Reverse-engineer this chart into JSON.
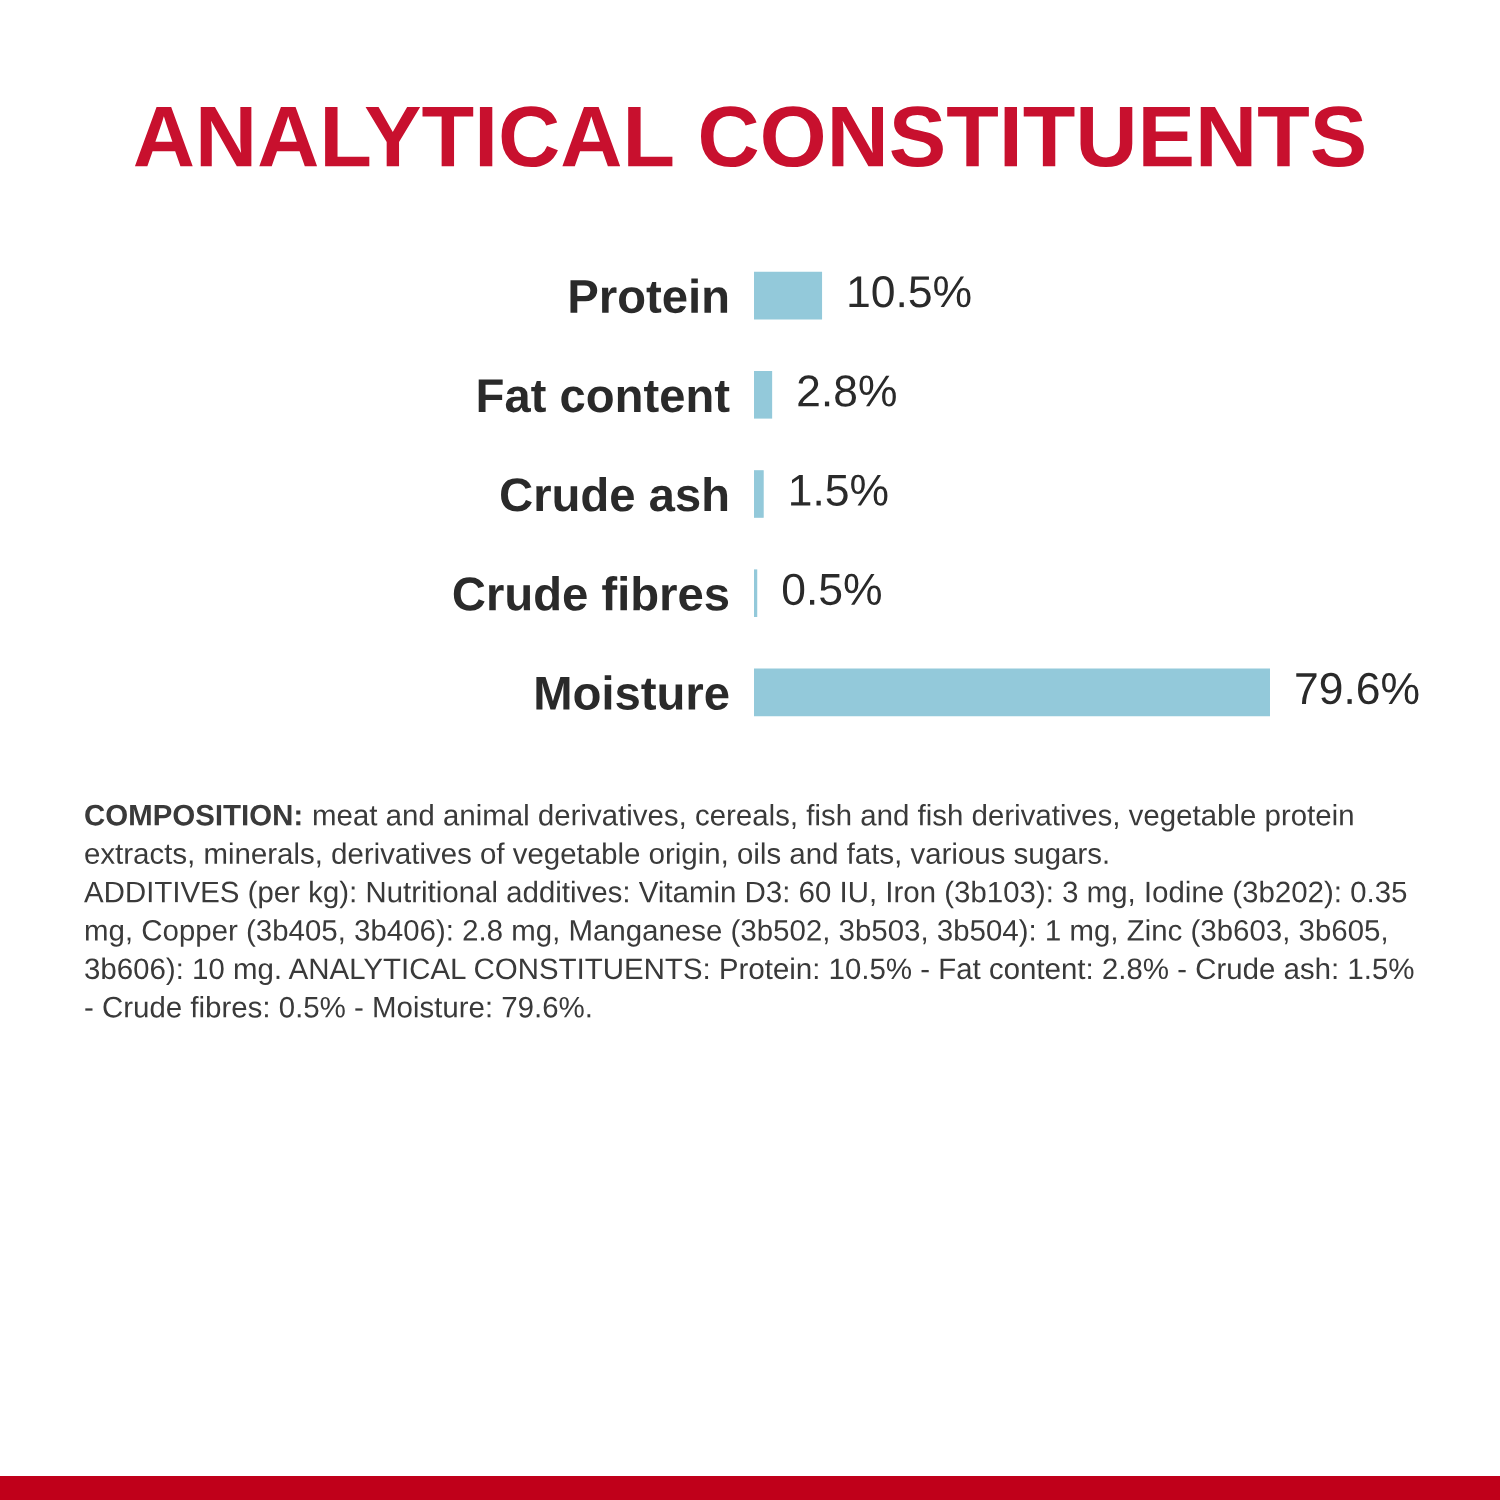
{
  "chart_data": {
    "type": "bar",
    "orientation": "horizontal",
    "title": "ANALYTICAL CONSTITUENTS",
    "categories": [
      "Protein",
      "Fat content",
      "Crude ash",
      "Crude fibres",
      "Moisture"
    ],
    "values": [
      10.5,
      2.8,
      1.5,
      0.5,
      79.6
    ],
    "color": "#93c9da",
    "value_labels": [
      "10.5%",
      "2.8%",
      "1.5%",
      "0.5%",
      "79.6%"
    ],
    "tick_labels": "y",
    "annotations": [
      "COMPOSITION:",
      "meat and animal derivatives, cereals, fish and fish derivatives, vegetable protein extracts, minerals, derivatives of vegetable origin, oils and fats, various sugars.",
      "ADDITIVES (per kg): Nutritional additives: Vitamin D3: 60 IU, Iron (3b103): 3 mg, Iodine (3b202): 0.35 mg, Copper (3b405, 3b406): 2.8 mg, Manganese (3b502, 3b503, 3b504): 1 mg, Zinc (3b603, 3b605, 3b606): 10 mg. ANALYTICAL CONSTITUENTS: Protein: 10.5% - Fat content: 2.8% - Crude ash: 1.5% - Crude fibres: 0.5% - Moisture: 79.6%."
    ]
  }
}
